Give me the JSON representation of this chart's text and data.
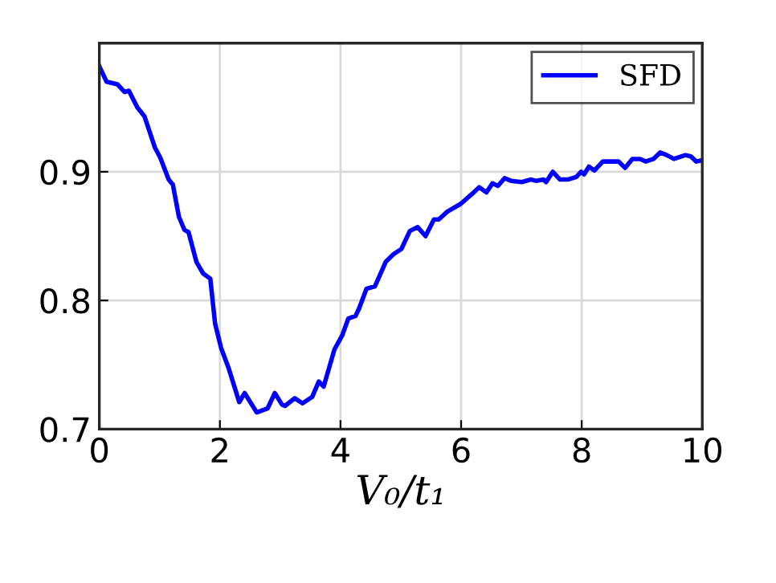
{
  "chart_data": {
    "type": "line",
    "xlabel": "V₀/t₁",
    "series": [
      {
        "name": "SFD",
        "color": "#0000ff",
        "x": [
          0,
          0.12,
          0.3,
          0.42,
          0.49,
          0.63,
          0.75,
          0.92,
          1.01,
          1.15,
          1.22,
          1.32,
          1.41,
          1.48,
          1.61,
          1.72,
          1.84,
          1.92,
          2.02,
          2.14,
          2.32,
          2.41,
          2.61,
          2.79,
          2.91,
          3.03,
          3.08,
          3.24,
          3.37,
          3.53,
          3.64,
          3.72,
          3.9,
          4.03,
          4.13,
          4.25,
          4.31,
          4.43,
          4.57,
          4.75,
          4.88,
          5.01,
          5.15,
          5.28,
          5.41,
          5.55,
          5.63,
          5.77,
          5.99,
          6.21,
          6.3,
          6.42,
          6.52,
          6.61,
          6.72,
          6.83,
          7.01,
          7.15,
          7.24,
          7.37,
          7.41,
          7.52,
          7.64,
          7.77,
          7.91,
          7.99,
          8.04,
          8.12,
          8.21,
          8.35,
          8.48,
          8.61,
          8.72,
          8.84,
          8.97,
          9.06,
          9.19,
          9.3,
          9.41,
          9.53,
          9.72,
          9.81,
          9.9,
          10
        ],
        "values": [
          0.982,
          0.97,
          0.968,
          0.962,
          0.963,
          0.95,
          0.943,
          0.919,
          0.911,
          0.894,
          0.89,
          0.865,
          0.855,
          0.853,
          0.83,
          0.821,
          0.817,
          0.782,
          0.763,
          0.748,
          0.721,
          0.728,
          0.713,
          0.716,
          0.728,
          0.719,
          0.718,
          0.724,
          0.72,
          0.725,
          0.737,
          0.733,
          0.762,
          0.773,
          0.786,
          0.788,
          0.794,
          0.809,
          0.811,
          0.83,
          0.836,
          0.84,
          0.854,
          0.857,
          0.85,
          0.863,
          0.863,
          0.869,
          0.875,
          0.884,
          0.888,
          0.884,
          0.891,
          0.889,
          0.895,
          0.893,
          0.892,
          0.894,
          0.893,
          0.894,
          0.892,
          0.9,
          0.894,
          0.894,
          0.896,
          0.9,
          0.898,
          0.904,
          0.901,
          0.908,
          0.908,
          0.908,
          0.903,
          0.91,
          0.91,
          0.908,
          0.91,
          0.915,
          0.913,
          0.91,
          0.913,
          0.912,
          0.908,
          0.909
        ]
      }
    ],
    "xlim": [
      0,
      10
    ],
    "xticks": [
      0,
      2,
      4,
      6,
      8,
      10
    ],
    "ylim": [
      0.7,
      1.0
    ],
    "yticks": [
      0.7,
      0.8,
      0.9
    ],
    "grid": true,
    "legend": "top right",
    "line_style": "solid",
    "marker": "none"
  }
}
